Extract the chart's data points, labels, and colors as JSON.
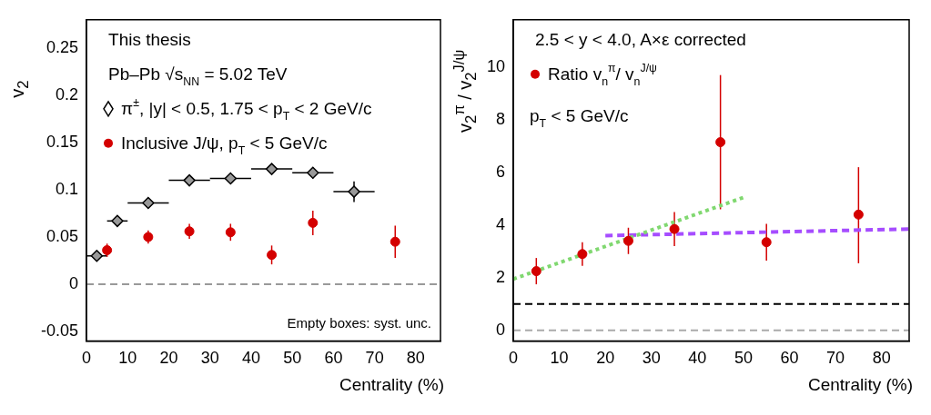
{
  "chart_data": [
    {
      "type": "scatter",
      "xlabel": "Centrality (%)",
      "ylabel": "v$_{2}$",
      "xlim": [
        0,
        86
      ],
      "ylim": [
        -0.06,
        0.28
      ],
      "xticks": [
        0,
        10,
        20,
        30,
        40,
        50,
        60,
        70,
        80
      ],
      "yticks": [
        -0.05,
        0,
        0.05,
        0.1,
        0.15,
        0.2,
        0.25
      ],
      "grid": false,
      "legend": "top left",
      "annotations": [
        "This thesis",
        "Pb–Pb √s$_{NN}$ = 5.02 TeV",
        "Empty boxes: syst. unc."
      ],
      "ref_lines": [
        {
          "axis": "y",
          "value": 0,
          "color": "#999999",
          "line_style": "dashed"
        }
      ],
      "series": [
        {
          "name": "π$^{±}$, |y| < 0.5, 1.75 < p$_{T}$ < 2 GeV/c",
          "color": "#999999",
          "marker": "diamond",
          "x": [
            2.5,
            7.5,
            15,
            25,
            35,
            45,
            55,
            65
          ],
          "values": [
            0.03,
            0.067,
            0.086,
            0.11,
            0.112,
            0.122,
            0.118,
            0.098
          ],
          "xerrors": [
            2.5,
            2.5,
            5,
            5,
            5,
            5,
            5,
            5
          ],
          "errors": [
            0.003,
            0.003,
            0.003,
            0.004,
            0.004,
            0.005,
            0.006,
            0.011
          ]
        },
        {
          "name": "Inclusive J/ψ, p$_{T}$ < 5 GeV/c",
          "color": "#d40000",
          "marker": "circle",
          "x": [
            5,
            15,
            25,
            35,
            45,
            55,
            75
          ],
          "values": [
            0.036,
            0.05,
            0.056,
            0.055,
            0.031,
            0.065,
            0.045
          ],
          "errors": [
            0.007,
            0.007,
            0.008,
            0.009,
            0.01,
            0.013,
            0.017
          ]
        }
      ]
    },
    {
      "type": "scatter",
      "xlabel": "Centrality (%)",
      "ylabel": "v$_{2}$$^{π}$ / v$_{2}$$^{J/ψ}$",
      "xlim": [
        0,
        86
      ],
      "ylim": [
        -0.4,
        11.8
      ],
      "xticks": [
        0,
        10,
        20,
        30,
        40,
        50,
        60,
        70,
        80
      ],
      "yticks": [
        0,
        2,
        4,
        6,
        8,
        10
      ],
      "grid": false,
      "legend": "top left",
      "annotations": [
        "2.5 < y < 4.0, A×ε corrected",
        "p$_{T}$ < 5 GeV/c"
      ],
      "ref_lines": [
        {
          "axis": "y",
          "value": 1,
          "color": "#000000",
          "line_style": "dashed"
        },
        {
          "axis": "y",
          "value": 0,
          "color": "#aaaaaa",
          "line_style": "dashed"
        }
      ],
      "series": [
        {
          "name": "Ratio v$_{n}$$^{π}$/ v$_{n}$$^{J/ψ}$",
          "color": "#d40000",
          "marker": "circle",
          "x": [
            5,
            15,
            25,
            35,
            45,
            55,
            75
          ],
          "values": [
            2.25,
            2.9,
            3.4,
            3.85,
            7.15,
            3.35,
            4.4
          ],
          "errors": [
            0.5,
            0.45,
            0.5,
            0.65,
            [
              4.6,
              9.7
            ],
            [
              2.65,
              4.05
            ],
            [
              2.55,
              6.2
            ]
          ]
        },
        {
          "type": "line",
          "color": "#80d870",
          "marker": "none",
          "line_style": "dotted",
          "x": [
            0,
            50
          ],
          "values": [
            1.95,
            5.05
          ]
        },
        {
          "type": "line",
          "color": "#a64dff",
          "marker": "none",
          "line_style": "dashed",
          "x": [
            20,
            86
          ],
          "values": [
            3.6,
            3.85
          ]
        }
      ]
    }
  ]
}
